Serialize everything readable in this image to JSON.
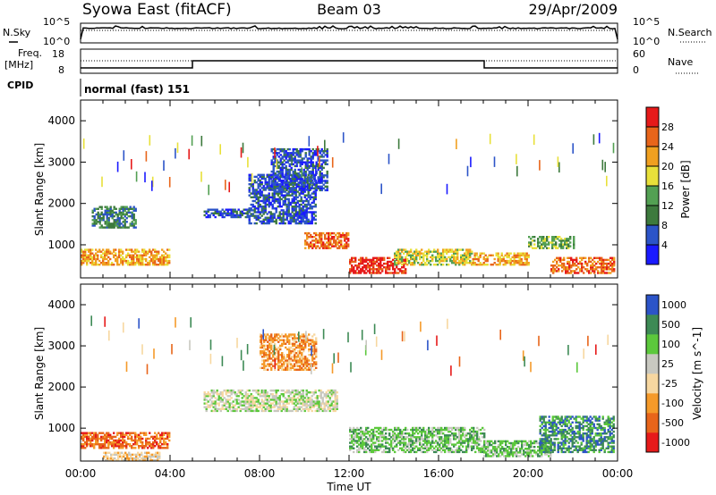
{
  "header": {
    "station": "Syowa East (fitACF)",
    "beam": "Beam 03",
    "date": "29/Apr/2009"
  },
  "top_panels": {
    "nsky_label": "N.Sky",
    "nsearch_label": "N.Search",
    "noise_ticks_left": [
      "10^5",
      "10^0"
    ],
    "noise_ticks_right": [
      "10^5",
      "10^0"
    ],
    "freq_label_1": "Freq.",
    "freq_label_2": "[MHz]",
    "freq_ticks": [
      "18",
      "8"
    ],
    "nave_label": "Nave",
    "nave_ticks": [
      "60",
      "0"
    ],
    "cpid_label": "CPID",
    "cpid_text": "normal (fast) 151"
  },
  "colors": {
    "power": [
      "#1a1aff",
      "#2c54c8",
      "#3d7a3d",
      "#53a053",
      "#e8e03a",
      "#f0a020",
      "#e8651a",
      "#e61a1a"
    ],
    "velocity": [
      "#e61a1a",
      "#e8651a",
      "#f59a2a",
      "#f7d7a0",
      "#c8c8c0",
      "#5cc83c",
      "#3d8a55",
      "#2c54c8"
    ]
  },
  "chart_data": [
    {
      "type": "heatmap",
      "panel": "power",
      "ylabel": "Slant Range [km]",
      "ylim": [
        200,
        4500
      ],
      "yticks": [
        "1000",
        "2000",
        "3000",
        "4000"
      ],
      "xticks": [
        "00:00",
        "04:00",
        "08:00",
        "12:00",
        "16:00",
        "20:00",
        "00:00"
      ],
      "colorbar_label": "Power [dB]",
      "colorbar_ticks": [
        "4",
        "8",
        "12",
        "16",
        "20",
        "24",
        "28"
      ],
      "regions": [
        {
          "t0": 0.0,
          "t1": 4.0,
          "r0": 500,
          "r1": 900,
          "level": 5
        },
        {
          "t0": 0.5,
          "t1": 2.5,
          "r0": 1400,
          "r1": 1900,
          "level": 2
        },
        {
          "t0": 5.5,
          "t1": 7.5,
          "r0": 1650,
          "r1": 1850,
          "level": 1
        },
        {
          "t0": 7.5,
          "t1": 10.5,
          "r0": 1500,
          "r1": 2700,
          "level": 1
        },
        {
          "t0": 8.5,
          "t1": 11.0,
          "r0": 2300,
          "r1": 3300,
          "level": 1
        },
        {
          "t0": 10.0,
          "t1": 12.0,
          "r0": 900,
          "r1": 1300,
          "level": 6
        },
        {
          "t0": 12.0,
          "t1": 14.5,
          "r0": 300,
          "r1": 700,
          "level": 7
        },
        {
          "t0": 14.0,
          "t1": 17.5,
          "r0": 500,
          "r1": 900,
          "level": 4
        },
        {
          "t0": 17.5,
          "t1": 20.0,
          "r0": 500,
          "r1": 800,
          "level": 5
        },
        {
          "t0": 20.0,
          "t1": 22.0,
          "r0": 900,
          "r1": 1200,
          "level": 3
        },
        {
          "t0": 21.0,
          "t1": 23.8,
          "r0": 300,
          "r1": 700,
          "level": 6
        }
      ]
    },
    {
      "type": "heatmap",
      "panel": "velocity",
      "ylabel": "Slant Range [km]",
      "ylim": [
        200,
        4500
      ],
      "yticks": [
        "1000",
        "2000",
        "3000",
        "4000"
      ],
      "xticks": [
        "00:00",
        "04:00",
        "08:00",
        "12:00",
        "16:00",
        "20:00",
        "00:00"
      ],
      "xlabel": "Time UT",
      "colorbar_label": "Velocity [m s^-1]",
      "colorbar_ticks": [
        "1000",
        "500",
        "100",
        "25",
        "-25",
        "-100",
        "-500",
        "-1000"
      ],
      "regions": [
        {
          "t0": 0.0,
          "t1": 4.0,
          "r0": 500,
          "r1": 900,
          "level": 1
        },
        {
          "t0": 1.0,
          "t1": 3.5,
          "r0": 200,
          "r1": 400,
          "level": 3
        },
        {
          "t0": 5.5,
          "t1": 11.5,
          "r0": 1400,
          "r1": 1900,
          "level": 4
        },
        {
          "t0": 8.0,
          "t1": 10.5,
          "r0": 2400,
          "r1": 3300,
          "level": 2
        },
        {
          "t0": 12.0,
          "t1": 18.0,
          "r0": 400,
          "r1": 1000,
          "level": 5
        },
        {
          "t0": 18.0,
          "t1": 21.0,
          "r0": 300,
          "r1": 700,
          "level": 5
        },
        {
          "t0": 20.5,
          "t1": 23.8,
          "r0": 400,
          "r1": 1300,
          "level": 6
        }
      ]
    }
  ]
}
